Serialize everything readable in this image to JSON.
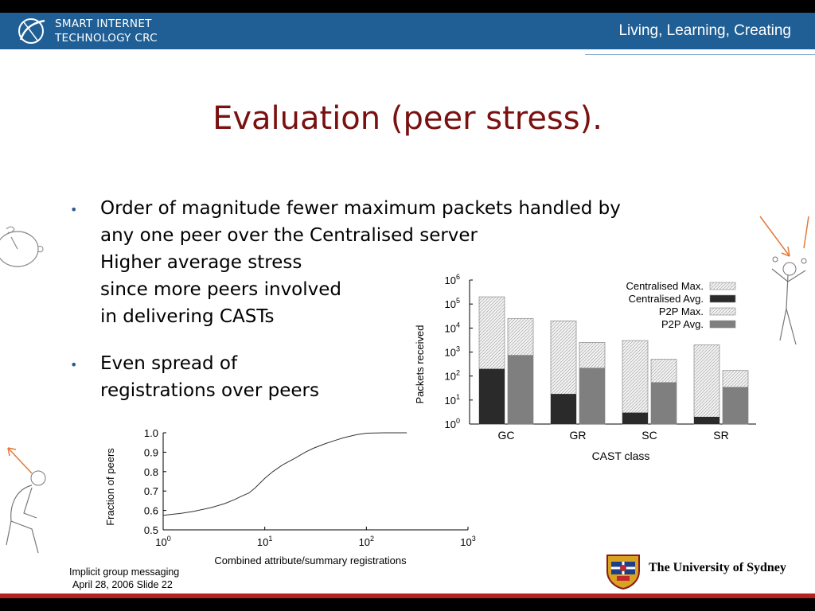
{
  "header": {
    "org_line1": "SMART INTERNET",
    "org_line2": "TECHNOLOGY CRC",
    "tagline": "Living, Learning, Creating"
  },
  "slide": {
    "title": "Evaluation (peer stress).",
    "bullet1": {
      "line1": "Order of magnitude fewer maximum packets handled by",
      "line2": "any one peer over the Centralised server",
      "line3": "Higher average stress",
      "line4": "since more peers involved",
      "line5": "in delivering CASTs"
    },
    "bullet2": {
      "line1": "Even spread of",
      "line2": "registrations over peers"
    }
  },
  "footer": {
    "line1": "Implicit group messaging",
    "line2": "April 28, 2006 Slide 22",
    "university": "The University of Sydney"
  },
  "chart_data": [
    {
      "type": "bar",
      "ylabel": "Packets received",
      "xlabel": "CAST class",
      "yscale": "log",
      "ylim": [
        1,
        1000000
      ],
      "categories": [
        "GC",
        "GR",
        "SC",
        "SR"
      ],
      "series": [
        {
          "name": "Centralised Max.",
          "values": [
            200000,
            20000,
            3000,
            2000
          ]
        },
        {
          "name": "Centralised Avg.",
          "values": [
            200,
            18,
            3,
            2
          ]
        },
        {
          "name": "P2P Max.",
          "values": [
            25000,
            2500,
            500,
            170
          ]
        },
        {
          "name": "P2P Avg.",
          "values": [
            750,
            220,
            55,
            35
          ]
        }
      ],
      "y_ticks": [
        "10",
        "10",
        "10",
        "10",
        "10",
        "10",
        "10"
      ],
      "y_tick_exponents": [
        "0",
        "1",
        "2",
        "3",
        "4",
        "5",
        "6"
      ],
      "legend_position": "top-right",
      "colors": {
        "max_fill": "#e8e8e8",
        "centralised_avg": "#2a2a2a",
        "p2p_avg": "#7f7f7f"
      }
    },
    {
      "type": "line",
      "ylabel": "Fraction of peers",
      "xlabel": "Combined attribute/summary registrations",
      "xscale": "log",
      "xlim": [
        1,
        1000
      ],
      "ylim": [
        0.5,
        1.0
      ],
      "x_ticks": [
        "10",
        "10",
        "10",
        "10"
      ],
      "x_tick_exponents": [
        "0",
        "1",
        "2",
        "3"
      ],
      "y_ticks": [
        "0.5",
        "0.6",
        "0.7",
        "0.8",
        "0.9",
        "1.0"
      ],
      "series": [
        {
          "x": [
            1,
            1.5,
            2,
            3,
            4,
            5,
            6,
            7,
            8,
            10,
            12,
            15,
            20,
            25,
            30,
            40,
            50,
            60,
            70,
            80,
            100,
            150,
            200,
            250
          ],
          "y": [
            0.575,
            0.585,
            0.595,
            0.615,
            0.635,
            0.655,
            0.675,
            0.69,
            0.715,
            0.765,
            0.8,
            0.835,
            0.87,
            0.9,
            0.92,
            0.945,
            0.962,
            0.975,
            0.983,
            0.99,
            0.998,
            1.0,
            1.0,
            1.0
          ]
        }
      ],
      "colors": {
        "line": "#333333"
      }
    }
  ]
}
